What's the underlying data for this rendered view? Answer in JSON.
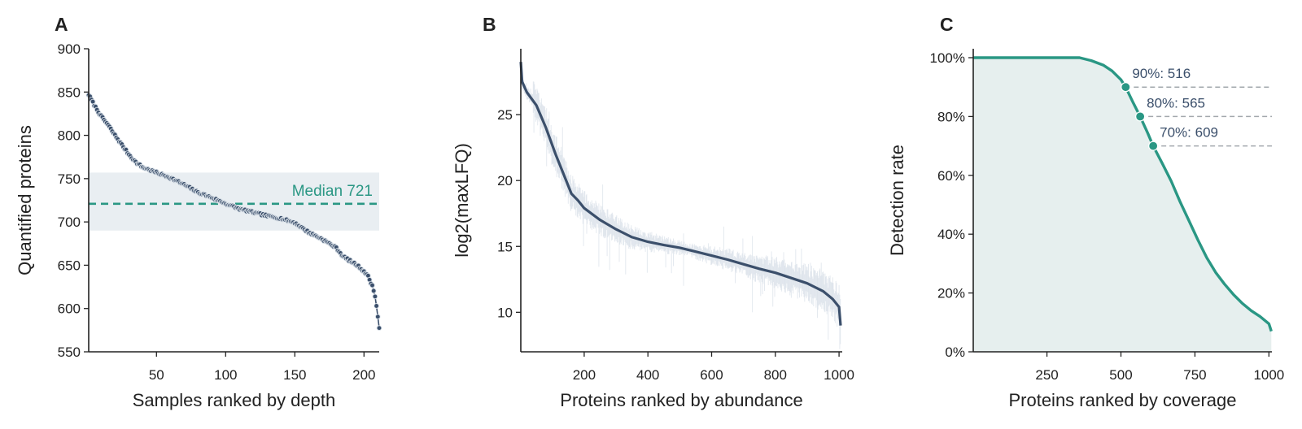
{
  "colors": {
    "navy": "#3b4f6b",
    "teal": "#2a9784",
    "band": "#e9eef2",
    "grey_dash": "#a2a8ad",
    "teal_fill": "#e6efee",
    "halo": "#cfd8e3"
  },
  "chart_data": [
    {
      "panel": "A",
      "type": "scatter",
      "xlabel": "Samples ranked by depth",
      "ylabel": "Quantified proteins",
      "xlim": [
        1,
        211
      ],
      "ylim": [
        550,
        900
      ],
      "xticks": [
        50,
        100,
        150,
        200
      ],
      "yticks": [
        550,
        600,
        650,
        700,
        750,
        800,
        850,
        900
      ],
      "n_points": 211,
      "anchors": [
        [
          1,
          847
        ],
        [
          5,
          835
        ],
        [
          10,
          822
        ],
        [
          15,
          812
        ],
        [
          20,
          800
        ],
        [
          25,
          789
        ],
        [
          30,
          778
        ],
        [
          35,
          769
        ],
        [
          40,
          763
        ],
        [
          45,
          760
        ],
        [
          50,
          757
        ],
        [
          60,
          751
        ],
        [
          70,
          743
        ],
        [
          80,
          734
        ],
        [
          90,
          728
        ],
        [
          100,
          721
        ],
        [
          110,
          715
        ],
        [
          120,
          711
        ],
        [
          130,
          707
        ],
        [
          140,
          704
        ],
        [
          150,
          699
        ],
        [
          160,
          688
        ],
        [
          170,
          680
        ],
        [
          180,
          670
        ],
        [
          185,
          660
        ],
        [
          190,
          655
        ],
        [
          195,
          650
        ],
        [
          200,
          643
        ],
        [
          203,
          637
        ],
        [
          206,
          626
        ],
        [
          208,
          615
        ],
        [
          209,
          603
        ],
        [
          210,
          590
        ],
        [
          211,
          578
        ]
      ],
      "median": 721,
      "median_label": "Median 721",
      "band": [
        690,
        757
      ]
    },
    {
      "panel": "B",
      "type": "line",
      "xlabel": "Proteins ranked by abundance",
      "ylabel": "log2(maxLFQ)",
      "xlim": [
        1,
        1010
      ],
      "ylim": [
        7,
        30
      ],
      "xticks": [
        200,
        400,
        600,
        800,
        1000
      ],
      "yticks": [
        10,
        15,
        20,
        25
      ],
      "median_curve": [
        [
          1,
          29
        ],
        [
          5,
          27.5
        ],
        [
          20,
          26.7
        ],
        [
          50,
          25.7
        ],
        [
          80,
          24
        ],
        [
          110,
          22
        ],
        [
          140,
          20.2
        ],
        [
          160,
          19
        ],
        [
          180,
          18.5
        ],
        [
          200,
          17.9
        ],
        [
          250,
          17
        ],
        [
          300,
          16.3
        ],
        [
          350,
          15.7
        ],
        [
          400,
          15.35
        ],
        [
          450,
          15.1
        ],
        [
          500,
          14.9
        ],
        [
          550,
          14.6
        ],
        [
          600,
          14.3
        ],
        [
          650,
          14
        ],
        [
          700,
          13.65
        ],
        [
          750,
          13.3
        ],
        [
          800,
          13
        ],
        [
          850,
          12.6
        ],
        [
          900,
          12.2
        ],
        [
          950,
          11.6
        ],
        [
          980,
          11
        ],
        [
          1000,
          10.4
        ],
        [
          1005,
          9
        ]
      ]
    },
    {
      "panel": "C",
      "type": "area",
      "xlabel": "Proteins ranked by coverage",
      "ylabel": "Detection rate",
      "xlim": [
        1,
        1010
      ],
      "ylim": [
        0,
        100
      ],
      "xticks": [
        250,
        500,
        750,
        1000
      ],
      "yticks": [
        "0%",
        "20%",
        "40%",
        "60%",
        "80%",
        "100%"
      ],
      "ytick_values": [
        0,
        20,
        40,
        60,
        80,
        100
      ],
      "curve": [
        [
          1,
          100
        ],
        [
          360,
          100
        ],
        [
          400,
          99
        ],
        [
          440,
          97.5
        ],
        [
          470,
          95.5
        ],
        [
          500,
          92.5
        ],
        [
          516,
          90
        ],
        [
          540,
          85
        ],
        [
          565,
          80
        ],
        [
          590,
          74.5
        ],
        [
          609,
          70
        ],
        [
          640,
          64
        ],
        [
          670,
          58
        ],
        [
          700,
          51
        ],
        [
          730,
          44.5
        ],
        [
          760,
          38
        ],
        [
          790,
          32
        ],
        [
          820,
          27
        ],
        [
          850,
          23
        ],
        [
          880,
          19.5
        ],
        [
          910,
          16.5
        ],
        [
          940,
          14
        ],
        [
          970,
          12
        ],
        [
          1000,
          9.5
        ],
        [
          1008,
          7
        ]
      ],
      "thresholds": [
        {
          "x": 516,
          "y": 90,
          "label": "90%: 516"
        },
        {
          "x": 565,
          "y": 80,
          "label": "80%: 565"
        },
        {
          "x": 609,
          "y": 70,
          "label": "70%: 609"
        }
      ]
    }
  ]
}
